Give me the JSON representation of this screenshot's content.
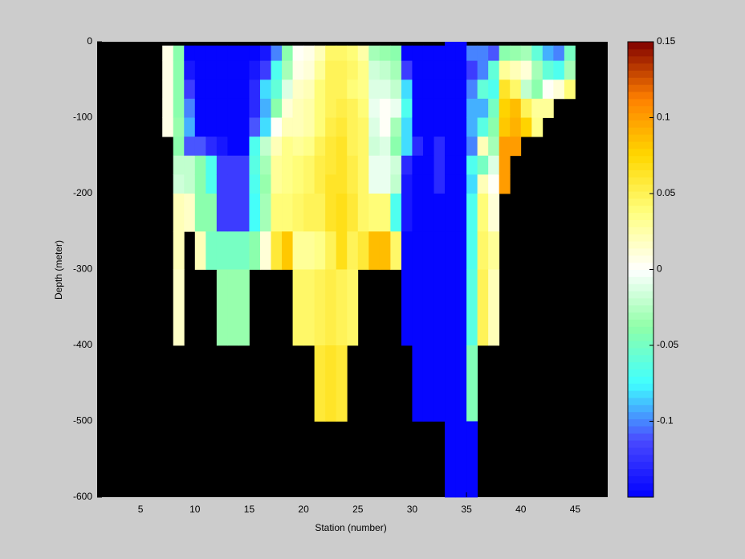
{
  "chart_data": {
    "type": "heatmap",
    "xlabel": "Station (number)",
    "ylabel": "Depth (meter)",
    "xlim": [
      1,
      48
    ],
    "ylim": [
      -600,
      0
    ],
    "xticks": [
      5,
      10,
      15,
      20,
      25,
      30,
      35,
      40,
      45
    ],
    "yticks": [
      -600,
      -500,
      -400,
      -300,
      -200,
      -100,
      0
    ],
    "background": "#000000",
    "x": [
      7,
      8,
      9,
      10,
      11,
      12,
      13,
      14,
      15,
      16,
      17,
      18,
      19,
      20,
      21,
      22,
      23,
      24,
      25,
      26,
      27,
      28,
      29,
      30,
      31,
      32,
      33,
      34,
      35,
      36,
      37,
      38,
      39,
      40,
      41,
      42,
      43,
      44,
      45
    ],
    "y": [
      0,
      -5,
      -25,
      -50,
      -75,
      -100,
      -125,
      -150,
      -175,
      -200,
      -250,
      -300,
      -400,
      -500,
      -600
    ],
    "values": [
      [
        null,
        0.005,
        0.005,
        0.005,
        0.005,
        0.005,
        null,
        null,
        null,
        null,
        null,
        null,
        null,
        null
      ],
      [
        null,
        -0.04,
        -0.04,
        -0.04,
        -0.04,
        -0.035,
        -0.04,
        -0.02,
        -0.015,
        0.02,
        0.02,
        0.015,
        null,
        null
      ],
      [
        null,
        -0.15,
        -0.14,
        -0.12,
        -0.1,
        -0.09,
        -0.11,
        -0.02,
        -0.02,
        0.015,
        null,
        null,
        null,
        null
      ],
      [
        null,
        -0.15,
        -0.15,
        -0.15,
        -0.15,
        -0.15,
        -0.11,
        -0.04,
        -0.04,
        -0.04,
        0.02,
        null,
        null,
        null
      ],
      [
        null,
        -0.15,
        -0.15,
        -0.15,
        -0.15,
        -0.15,
        -0.13,
        -0.07,
        -0.07,
        -0.04,
        -0.05,
        null,
        null,
        null
      ],
      [
        null,
        -0.15,
        -0.15,
        -0.15,
        -0.15,
        -0.15,
        -0.14,
        -0.12,
        -0.12,
        -0.12,
        -0.05,
        -0.035,
        null,
        null
      ],
      [
        null,
        -0.15,
        -0.15,
        -0.15,
        -0.15,
        -0.15,
        -0.15,
        -0.12,
        -0.12,
        -0.12,
        -0.05,
        -0.035,
        null,
        null
      ],
      [
        null,
        -0.15,
        -0.15,
        -0.15,
        -0.15,
        -0.15,
        -0.15,
        -0.12,
        -0.12,
        -0.12,
        -0.05,
        -0.035,
        null,
        null
      ],
      [
        null,
        -0.15,
        -0.14,
        -0.13,
        -0.13,
        -0.11,
        -0.07,
        -0.065,
        -0.07,
        -0.075,
        -0.04,
        null,
        null,
        null
      ],
      [
        null,
        -0.14,
        -0.12,
        -0.08,
        -0.09,
        -0.08,
        -0.02,
        -0.03,
        -0.035,
        -0.03,
        0.01,
        null,
        null,
        null
      ],
      [
        null,
        -0.1,
        -0.07,
        -0.06,
        -0.04,
        0,
        0.02,
        0.03,
        0.03,
        0.04,
        0.06,
        null,
        null,
        null
      ],
      [
        null,
        -0.04,
        -0.03,
        -0.01,
        0.01,
        0.02,
        0.035,
        0.035,
        0.035,
        0.04,
        0.08,
        null,
        null,
        null
      ],
      [
        null,
        0,
        0.005,
        0.015,
        0.02,
        0.02,
        0.03,
        0.04,
        0.04,
        0.045,
        0.03,
        0.045,
        null,
        null
      ],
      [
        null,
        0.005,
        0.01,
        0.02,
        0.025,
        0.025,
        0.035,
        0.045,
        0.045,
        0.05,
        0.03,
        0.045,
        null,
        null
      ],
      [
        null,
        0.02,
        0.03,
        0.04,
        0.04,
        0.04,
        0.05,
        0.055,
        0.055,
        0.05,
        0.035,
        0.05,
        0.06,
        null
      ],
      [
        null,
        0.045,
        0.05,
        0.05,
        0.05,
        0.055,
        0.06,
        0.06,
        0.065,
        0.065,
        0.05,
        0.055,
        0.065,
        null
      ],
      [
        null,
        0.045,
        0.05,
        0.05,
        0.055,
        0.06,
        0.065,
        0.065,
        0.065,
        0.07,
        0.07,
        0.05,
        0.06,
        null
      ],
      [
        null,
        0.04,
        0.045,
        0.04,
        0.05,
        0.05,
        0.05,
        0.055,
        0.055,
        0.06,
        0.05,
        0.045,
        null,
        null
      ],
      [
        null,
        0.025,
        0.035,
        0.035,
        0.04,
        0.045,
        0.045,
        0.045,
        0.045,
        0.045,
        0.06,
        null,
        null,
        null
      ],
      [
        null,
        -0.03,
        -0.015,
        -0.01,
        -0.005,
        -0.01,
        -0.015,
        -0.005,
        -0.005,
        0.04,
        0.085,
        null,
        null,
        null
      ],
      [
        null,
        -0.035,
        -0.02,
        -0.01,
        0,
        0,
        -0.01,
        -0.005,
        -0.005,
        0.04,
        0.085,
        null,
        null,
        null
      ],
      [
        null,
        -0.04,
        -0.03,
        -0.02,
        -0.005,
        -0.03,
        -0.04,
        -0.015,
        -0.02,
        -0.07,
        0.045,
        null,
        null,
        null
      ],
      [
        null,
        -0.15,
        -0.12,
        -0.08,
        -0.07,
        -0.08,
        -0.08,
        -0.13,
        -0.14,
        -0.14,
        -0.15,
        -0.15,
        null,
        null
      ],
      [
        null,
        -0.15,
        -0.15,
        -0.15,
        -0.15,
        -0.15,
        -0.13,
        -0.15,
        -0.15,
        -0.15,
        -0.15,
        -0.15,
        -0.15,
        null
      ],
      [
        null,
        -0.15,
        -0.15,
        -0.15,
        -0.15,
        -0.15,
        -0.15,
        -0.15,
        -0.15,
        -0.15,
        -0.15,
        -0.15,
        -0.15,
        null
      ],
      [
        null,
        -0.15,
        -0.15,
        -0.15,
        -0.15,
        -0.15,
        -0.13,
        -0.13,
        -0.13,
        -0.15,
        -0.15,
        -0.15,
        -0.15,
        null
      ],
      [
        -0.15,
        -0.15,
        -0.15,
        -0.15,
        -0.15,
        -0.15,
        -0.15,
        -0.15,
        -0.15,
        -0.15,
        -0.15,
        -0.15,
        -0.15,
        -0.15
      ],
      [
        -0.15,
        -0.15,
        -0.15,
        -0.15,
        -0.15,
        -0.15,
        -0.15,
        -0.15,
        -0.15,
        -0.15,
        -0.15,
        -0.15,
        -0.15,
        -0.15
      ],
      [
        null,
        -0.1,
        -0.12,
        -0.1,
        -0.09,
        -0.09,
        -0.1,
        -0.07,
        -0.08,
        -0.07,
        -0.07,
        -0.065,
        -0.045,
        -0.15
      ],
      [
        null,
        -0.1,
        -0.1,
        -0.06,
        -0.09,
        -0.065,
        0.02,
        -0.05,
        0.02,
        0.04,
        0.045,
        0.05,
        null,
        null
      ],
      [
        null,
        -0.11,
        -0.06,
        -0.07,
        -0.05,
        -0.04,
        -0.03,
        -0.01,
        0,
        0.01,
        0.03,
        0.02,
        null,
        null
      ],
      [
        null,
        -0.04,
        0.03,
        0.065,
        0.075,
        0.08,
        0.1,
        0.1,
        0.1,
        null,
        null,
        null,
        null,
        null
      ],
      [
        null,
        -0.035,
        0.02,
        0.045,
        0.085,
        0.09,
        0.1,
        null,
        null,
        null,
        null,
        null,
        null,
        null
      ],
      [
        null,
        -0.03,
        0.01,
        -0.02,
        0.05,
        0.075,
        null,
        null,
        null,
        null,
        null,
        null,
        null,
        null
      ],
      [
        null,
        -0.06,
        -0.03,
        -0.04,
        0.03,
        0.035,
        null,
        null,
        null,
        null,
        null,
        null,
        null,
        null
      ],
      [
        null,
        -0.09,
        -0.06,
        0,
        0.03,
        null,
        null,
        null,
        null,
        null,
        null,
        null,
        null,
        null
      ],
      [
        null,
        -0.1,
        -0.07,
        0.01,
        null,
        null,
        null,
        null,
        null,
        null,
        null,
        null,
        null,
        null
      ],
      [
        null,
        -0.05,
        -0.03,
        0.04,
        null,
        null,
        null,
        null,
        null,
        null,
        null,
        null,
        null,
        null
      ]
    ],
    "colorbar": {
      "clim": [
        -0.15,
        0.15
      ],
      "ticks": [
        -0.1,
        -0.05,
        0,
        0.05,
        0.1,
        0.15
      ],
      "colormap": [
        "#0000ff",
        "#4a4aff",
        "#40ffff",
        "#90ffa8",
        "#ffffff",
        "#ffff80",
        "#ffd800",
        "#ff8000",
        "#800000"
      ]
    }
  }
}
